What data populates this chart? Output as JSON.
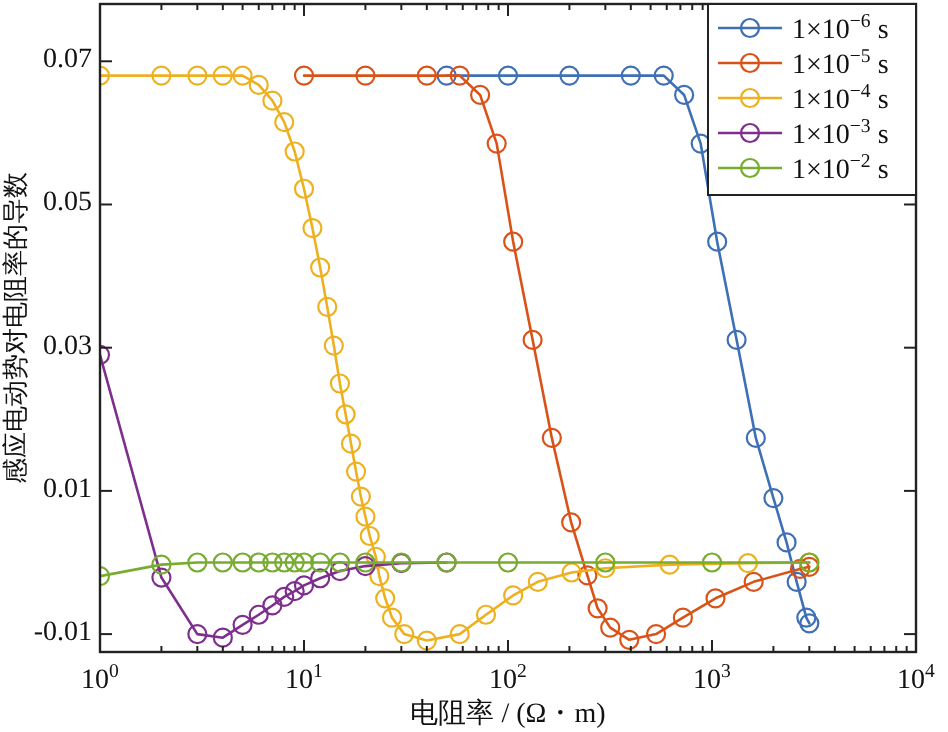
{
  "chart_data": {
    "type": "line",
    "xlabel": "电阻率 / (Ω・m)",
    "ylabel": "感应电动势对电阻率的导数",
    "log": "x",
    "xlim": [
      1,
      10000
    ],
    "xticks": [
      {
        "value": 1,
        "label": "10$^{0}$"
      },
      {
        "value": 10,
        "label": "10$^{1}$"
      },
      {
        "value": 100,
        "label": "10$^{2}$"
      },
      {
        "value": 1000,
        "label": "10$^{3}$"
      },
      {
        "value": 10000,
        "label": "10$^{4}$"
      }
    ],
    "ylim": [
      -0.0125,
      0.078
    ],
    "yticks": [
      -0.01,
      0.01,
      0.03,
      0.05,
      0.07
    ],
    "grid": false,
    "legend": "top right",
    "marker": "circle",
    "line_style": "solid",
    "series": [
      {
        "name": "1×10$^{−6}$ s",
        "color": "#3f6fb5",
        "x": [
          50,
          100,
          200,
          400,
          580,
          730,
          880,
          1060,
          1320,
          1640,
          2000,
          2320,
          2600,
          2900,
          3000
        ],
        "values": [
          0.068,
          0.068,
          0.068,
          0.068,
          0.068,
          0.0653,
          0.0585,
          0.0448,
          0.0311,
          0.0174,
          0.009,
          0.0028,
          -0.0027,
          -0.0077,
          -0.0085
        ]
      },
      {
        "name": "1×10$^{−5}$ s",
        "color": "#d95319",
        "x": [
          10,
          20,
          40,
          58,
          73,
          88,
          106,
          132,
          164,
          204,
          245,
          275,
          317,
          393,
          532,
          720,
          1040,
          1600,
          2700,
          3000
        ],
        "values": [
          0.068,
          0.068,
          0.068,
          0.068,
          0.0653,
          0.0585,
          0.0448,
          0.0311,
          0.0174,
          0.0056,
          -0.0018,
          -0.0064,
          -0.0091,
          -0.0108,
          -0.01,
          -0.0077,
          -0.005,
          -0.0027,
          -0.0009,
          -0.0006
        ]
      },
      {
        "name": "1×10$^{−4}$ s",
        "color": "#edb120",
        "x": [
          1,
          2,
          3,
          4,
          5,
          6,
          7,
          8,
          9,
          10,
          11,
          12,
          13,
          14,
          15,
          16,
          17,
          18,
          19,
          20,
          21,
          22.5,
          23.4,
          25,
          27,
          31,
          40,
          58,
          78,
          106,
          140,
          205,
          300,
          620,
          1500,
          3000
        ],
        "values": [
          0.068,
          0.068,
          0.068,
          0.068,
          0.068,
          0.0667,
          0.0645,
          0.0615,
          0.0574,
          0.0522,
          0.0467,
          0.0412,
          0.0357,
          0.0303,
          0.025,
          0.0207,
          0.0166,
          0.0127,
          0.0092,
          0.0064,
          0.0037,
          0.0008,
          -0.0019,
          -0.005,
          -0.0077,
          -0.01,
          -0.0109,
          -0.01,
          -0.0073,
          -0.0046,
          -0.0027,
          -0.0014,
          -0.0008,
          -0.0003,
          -0.0001,
          0
        ]
      },
      {
        "name": "1×10$^{−3}$ s",
        "color": "#7e2f8e",
        "x": [
          1,
          2,
          3,
          4,
          5,
          6,
          7,
          8,
          9,
          10,
          12,
          15,
          20,
          30,
          50
        ],
        "values": [
          0.029,
          -0.0021,
          -0.01,
          -0.0105,
          -0.0087,
          -0.0073,
          -0.006,
          -0.0048,
          -0.004,
          -0.0032,
          -0.0022,
          -0.0012,
          -0.0005,
          -0.0001,
          0
        ]
      },
      {
        "name": "1×10$^{−2}$ s",
        "color": "#77ac30",
        "x": [
          1,
          2,
          3,
          4,
          5,
          6,
          7,
          8,
          9,
          10,
          12,
          15,
          20,
          30,
          50,
          100,
          300,
          1000,
          3000
        ],
        "values": [
          -0.0019,
          -0.0003,
          0,
          0,
          0,
          0,
          0,
          0,
          0,
          0,
          0,
          0,
          0,
          0,
          0,
          0,
          0,
          0,
          0
        ]
      }
    ]
  }
}
